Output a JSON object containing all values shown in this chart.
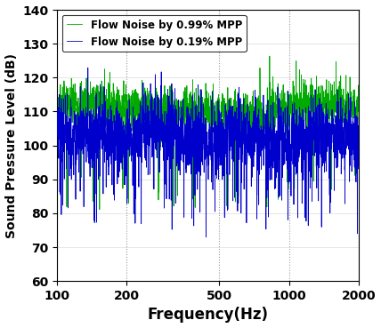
{
  "xlabel": "Frequency(Hz)",
  "ylabel": "Sound Pressure Level (dB)",
  "xlim": [
    100,
    2000
  ],
  "ylim": [
    60,
    140
  ],
  "yticks": [
    60,
    70,
    80,
    90,
    100,
    110,
    120,
    130,
    140
  ],
  "xticks": [
    100,
    200,
    500,
    1000,
    2000
  ],
  "xticklabels": [
    "100",
    "200",
    "500",
    "1000",
    "2000"
  ],
  "green_label": "Flow Noise by 0.99% MPP",
  "blue_label": "Flow Noise by 0.19% MPP",
  "green_color": "#00AA00",
  "blue_color": "#0000CC",
  "n_points": 2000,
  "freq_start": 100,
  "freq_end": 2000,
  "seed_green": 7,
  "seed_blue": 13
}
